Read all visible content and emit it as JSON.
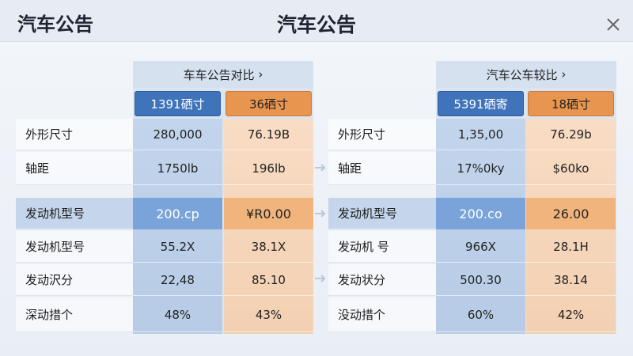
{
  "header": {
    "left_title": "汽车公告",
    "center_title": "汽车公告"
  },
  "panels": [
    {
      "header": "车车公告对比",
      "columns": [
        "1391硒寸",
        "36硒寸"
      ],
      "rows": [
        {
          "label": "外形尺寸",
          "values": [
            "280,000",
            "76.19B"
          ]
        },
        {
          "label": "轴距",
          "values": [
            "1750lb",
            "196lb"
          ]
        },
        {
          "label": "发动机型号",
          "values": [
            "200.cp",
            "¥R0.00"
          ]
        },
        {
          "label": "发动机型号",
          "values": [
            "55.2X",
            "38.1X"
          ]
        },
        {
          "label": "发动沢分",
          "values": [
            "22,48",
            "85.10"
          ]
        },
        {
          "label": "深动措个",
          "values": [
            "48%",
            "43%"
          ]
        }
      ]
    },
    {
      "header": "汽车公车较比",
      "columns": [
        "5391硒寄",
        "18硒寸"
      ],
      "rows": [
        {
          "label": "外形尺寸",
          "values": [
            "1,35,00",
            "76.29b"
          ]
        },
        {
          "label": "轴距",
          "values": [
            "17%0ky",
            "$60ko"
          ]
        },
        {
          "label": "发动机型号",
          "values": [
            "200.co",
            "26.00"
          ]
        },
        {
          "label": "发动机 号",
          "values": [
            "966X",
            "28.1H"
          ]
        },
        {
          "label": "发动状分",
          "values": [
            "500.30",
            "38.14"
          ]
        },
        {
          "label": "没动措个",
          "values": [
            "60%",
            "42%"
          ]
        }
      ]
    }
  ]
}
